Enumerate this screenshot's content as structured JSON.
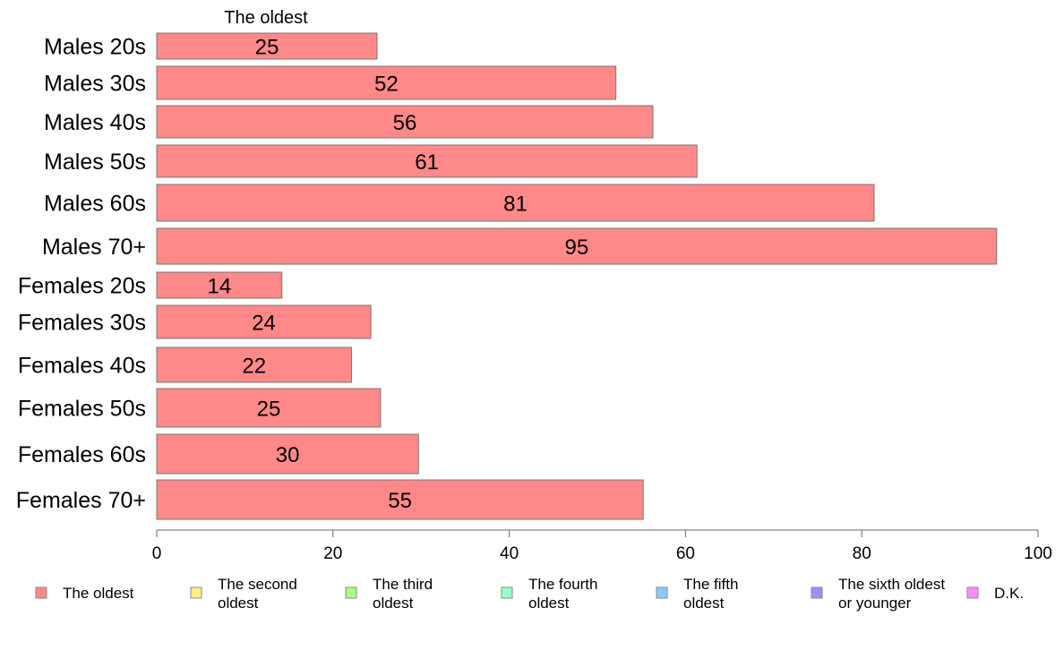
{
  "chart_data": {
    "type": "bar",
    "orientation": "horizontal",
    "series_title": "The oldest",
    "categories": [
      "Males 20s",
      "Males 30s",
      "Males 40s",
      "Males 50s",
      "Males 60s",
      "Males 70+",
      "Females 20s",
      "Females 30s",
      "Females 40s",
      "Females 50s",
      "Females 60s",
      "Females 70+"
    ],
    "series": [
      {
        "name": "The oldest",
        "values": [
          25,
          52,
          56,
          61,
          81,
          95,
          14,
          24,
          22,
          25,
          30,
          55
        ]
      }
    ],
    "bar_values": [
      25,
      52.1,
      56.3,
      61.3,
      81.4,
      95.3,
      14.2,
      24.3,
      22.1,
      25.4,
      29.7,
      55.2
    ],
    "xlim": [
      0,
      100
    ],
    "xticks": [
      0,
      20,
      40,
      60,
      80,
      100
    ],
    "grid": false,
    "legend": {
      "position": "bottom",
      "entries": [
        {
          "label": "The oldest",
          "color": "#ff8888"
        },
        {
          "label": "The second oldest",
          "color": "#ffee88"
        },
        {
          "label": "The third oldest",
          "color": "#aaff88"
        },
        {
          "label": "The fourth oldest",
          "color": "#99ffcc"
        },
        {
          "label": "The fifth oldest",
          "color": "#88ccff"
        },
        {
          "label": "The sixth oldest or younger",
          "color": "#aa88ff"
        },
        {
          "label": "D.K.",
          "color": "#ff88ff"
        }
      ]
    },
    "colors": {
      "bar": "#ff8888",
      "bar_stroke": "#777777",
      "axis": "#666666"
    }
  }
}
